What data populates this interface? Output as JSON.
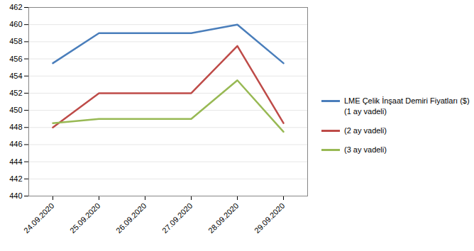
{
  "chart_data": {
    "type": "line",
    "x": [
      "24.09.2020",
      "25.09.2020",
      "26.09.2020",
      "27.09.2020",
      "28.09.2020",
      "29.09.2020"
    ],
    "series": [
      {
        "name": "LME Çelik İnşaat Demiri Fiyatları ($)(1 ay vadeli)",
        "color": "#4a7ebb",
        "values": [
          455.5,
          459,
          459,
          459,
          460,
          455.5
        ]
      },
      {
        "name": "(2 ay vadeli)",
        "color": "#be4b48",
        "values": [
          448,
          452,
          452,
          452,
          457.5,
          448.5
        ]
      },
      {
        "name": "(3 ay vadeli)",
        "color": "#98b954",
        "values": [
          448.5,
          449,
          449,
          449,
          453.5,
          447.5
        ]
      }
    ],
    "ylim": [
      440,
      462
    ],
    "yticks": [
      440,
      442,
      444,
      446,
      448,
      450,
      452,
      454,
      456,
      458,
      460,
      462
    ],
    "grid": true,
    "legend": "right"
  }
}
